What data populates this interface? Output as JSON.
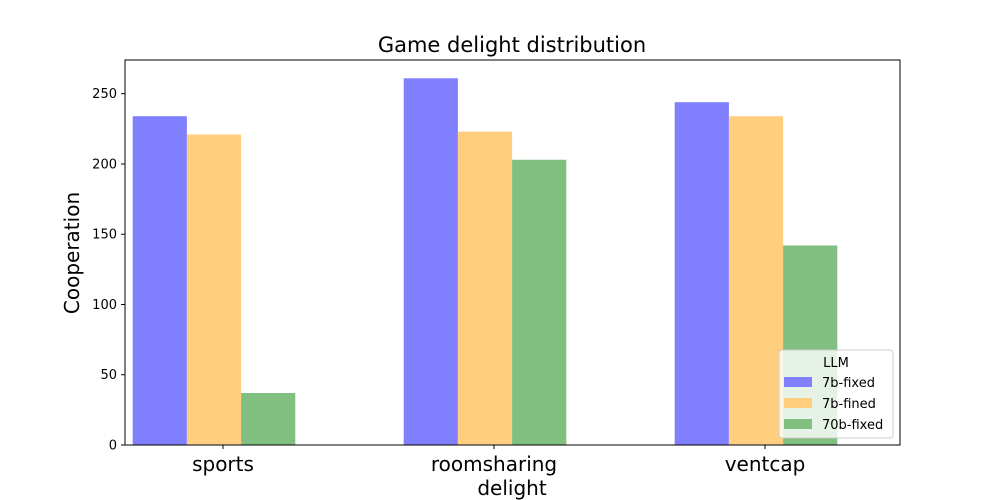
{
  "chart_data": {
    "type": "bar",
    "title": "Game delight distribution",
    "xlabel": "delight",
    "ylabel": "Cooperation",
    "categories": [
      "sports",
      "roomsharing",
      "ventcap"
    ],
    "series": [
      {
        "name": "7b-fixed",
        "values": [
          234,
          261,
          244
        ],
        "color": "#8080ff"
      },
      {
        "name": "7b-fined",
        "values": [
          221,
          223,
          234
        ],
        "color": "#ffcf7f"
      },
      {
        "name": "70b-fixed",
        "values": [
          37,
          203,
          142
        ],
        "color": "#80bf80"
      }
    ],
    "ylim": [
      0,
      274
    ],
    "yticks": [
      0,
      50,
      100,
      150,
      200,
      250
    ],
    "grid": false,
    "legend": {
      "title": "LLM",
      "position": "lower-right"
    }
  }
}
